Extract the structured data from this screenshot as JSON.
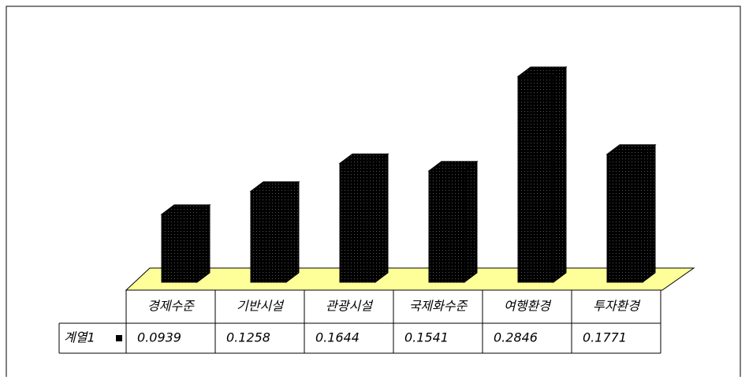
{
  "chart_data": {
    "type": "bar",
    "categories": [
      "경제수준",
      "기반시설",
      "관광시설",
      "국제화수준",
      "여행환경",
      "투자환경"
    ],
    "series": [
      {
        "name": "계열1",
        "color": "#000000",
        "values": [
          0.0939,
          0.1258,
          0.1644,
          0.1541,
          0.2846,
          0.1771
        ]
      }
    ]
  }
}
